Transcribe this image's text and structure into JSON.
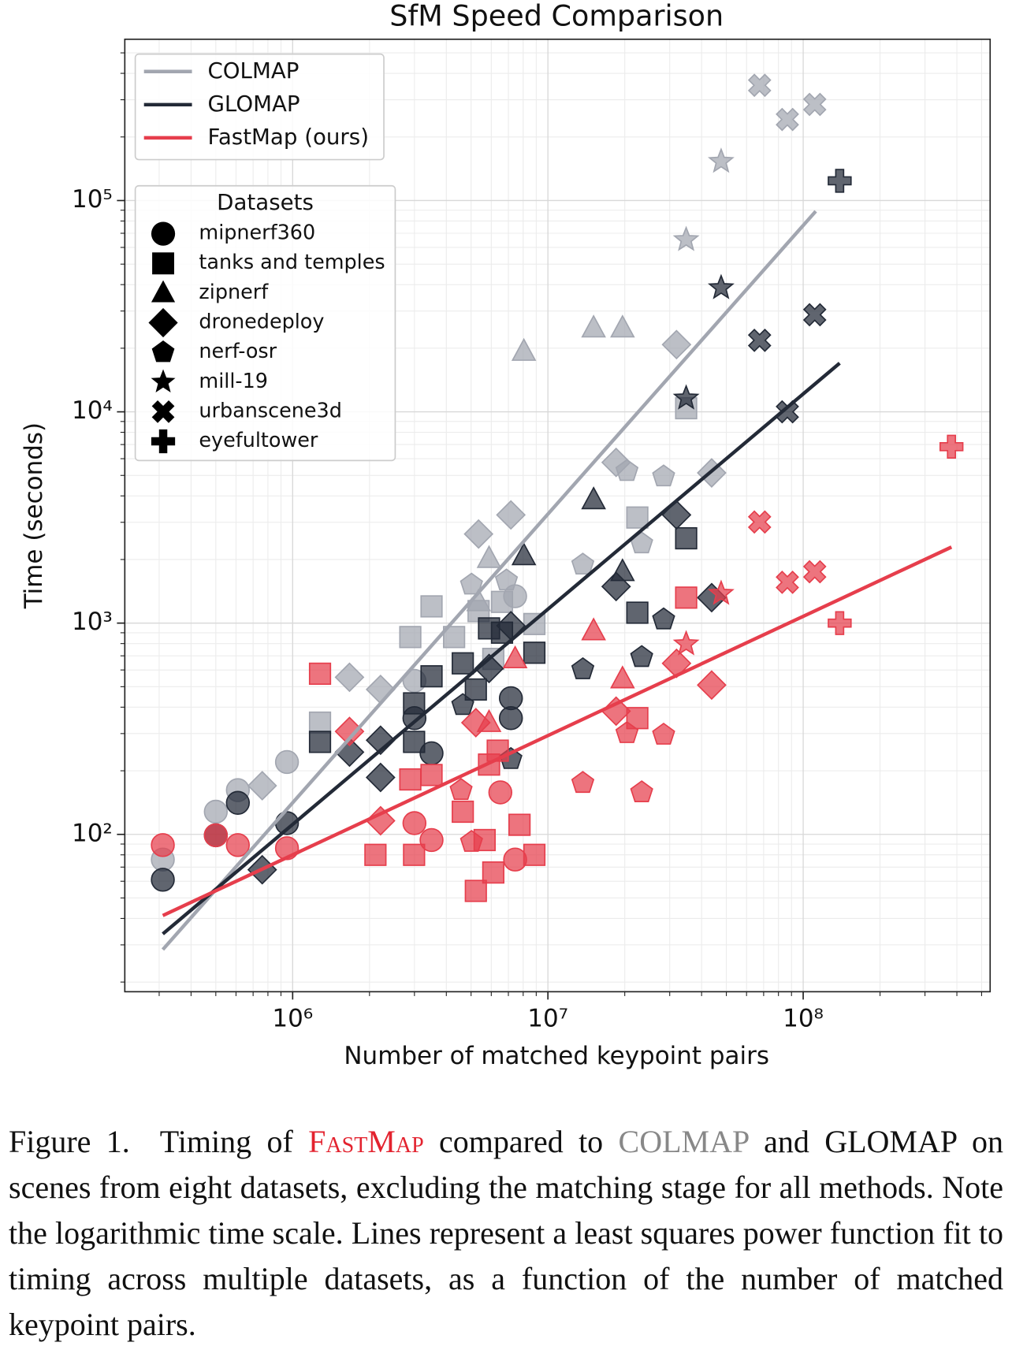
{
  "chart_data": {
    "type": "scatter",
    "title": "SfM Speed Comparison",
    "xlabel": "Number of matched keypoint pairs",
    "ylabel": "Time (seconds)",
    "xscale": "log",
    "yscale": "log",
    "grid": true,
    "legend": "upper left",
    "xlim": [
      220000,
      540000000
    ],
    "ylim": [
      18,
      580000
    ],
    "xticks": [
      {
        "value": 1000000,
        "label": "10⁶"
      },
      {
        "value": 10000000,
        "label": "10⁷"
      },
      {
        "value": 100000000,
        "label": "10⁸"
      }
    ],
    "yticks": [
      {
        "value": 100,
        "label": "10²"
      },
      {
        "value": 1000,
        "label": "10³"
      },
      {
        "value": 10000,
        "label": "10⁴"
      },
      {
        "value": 100000,
        "label": "10⁵"
      }
    ],
    "xminorticks": [
      300000,
      400000,
      500000,
      600000,
      700000,
      800000,
      900000,
      2000000,
      3000000,
      4000000,
      5000000,
      6000000,
      7000000,
      8000000,
      9000000,
      20000000,
      30000000,
      40000000,
      50000000,
      60000000,
      70000000,
      80000000,
      90000000,
      200000000,
      300000000,
      400000000,
      500000000
    ],
    "yminorticks": [
      20,
      30,
      40,
      50,
      60,
      70,
      80,
      90,
      200,
      300,
      400,
      500,
      600,
      700,
      800,
      900,
      2000,
      3000,
      4000,
      5000,
      6000,
      7000,
      8000,
      9000,
      20000,
      30000,
      40000,
      50000,
      60000,
      70000,
      80000,
      90000,
      200000,
      300000,
      400000,
      500000
    ],
    "methods": [
      {
        "name": "COLMAP",
        "color": "#a2a6b0",
        "fit": {
          "x": [
            310000,
            112000000
          ],
          "values": [
            28.5,
            89000
          ]
        }
      },
      {
        "name": "GLOMAP",
        "color": "#232a37",
        "fit": {
          "x": [
            310000,
            139000000
          ],
          "values": [
            33.8,
            17000
          ]
        }
      },
      {
        "name": "FastMap (ours)",
        "color": "#e63e4c",
        "fit": {
          "x": [
            310000,
            381000000
          ],
          "values": [
            41.3,
            2290
          ]
        }
      }
    ],
    "legend_title": "Datasets",
    "datasets": [
      {
        "name": "mipnerf360",
        "marker": "circle"
      },
      {
        "name": "tanks and temples",
        "marker": "square"
      },
      {
        "name": "zipnerf",
        "marker": "triangle"
      },
      {
        "name": "dronedeploy",
        "marker": "diamond"
      },
      {
        "name": "nerf-osr",
        "marker": "pentagon"
      },
      {
        "name": "mill-19",
        "marker": "star"
      },
      {
        "name": "urbanscene3d",
        "marker": "x"
      },
      {
        "name": "eyefultower",
        "marker": "plus"
      }
    ],
    "groups": [
      {
        "method": 0,
        "dataset": 0,
        "x": [
          310000,
          500000,
          610000,
          950000,
          3000000,
          7440000
        ],
        "values": [
          76,
          128,
          162,
          220,
          533,
          1340
        ]
      },
      {
        "method": 0,
        "dataset": 1,
        "x": [
          1280000,
          2890000,
          3500000,
          4290000,
          5350000,
          6610000,
          8850000,
          22400000,
          34800000,
          6110000
        ],
        "values": [
          338,
          859,
          1200,
          859,
          1140,
          1260,
          990,
          3160,
          10400,
          677
        ]
      },
      {
        "method": 0,
        "dataset": 2,
        "x": [
          8050000,
          15100000,
          19600000,
          5880000,
          5350000
        ],
        "values": [
          19300,
          24900,
          24900,
          2020,
          1260
        ]
      },
      {
        "method": 0,
        "dataset": 3,
        "x": [
          1670000,
          760000,
          2210000,
          5350000,
          7160000,
          18500000,
          31900000,
          43800000
        ],
        "values": [
          554,
          170,
          485,
          2640,
          3250,
          5760,
          20800,
          5140
        ]
      },
      {
        "method": 0,
        "dataset": 4,
        "x": [
          5020000,
          6880000,
          13700000,
          20400000,
          28400000,
          23300000
        ],
        "values": [
          1520,
          1590,
          1890,
          5240,
          4940,
          2380
        ]
      },
      {
        "method": 0,
        "dataset": 5,
        "x": [
          34800000,
          47700000
        ],
        "values": [
          65200,
          153000
        ]
      },
      {
        "method": 0,
        "dataset": 6,
        "x": [
          67500000,
          86700000,
          111000000
        ],
        "values": [
          351000,
          242000,
          285000
        ]
      },
      {
        "method": 1,
        "dataset": 0,
        "x": [
          310000,
          500000,
          610000,
          950000,
          3500000,
          3000000,
          7160000,
          7160000
        ],
        "values": [
          61,
          99,
          141,
          113,
          242,
          355,
          441,
          355
        ]
      },
      {
        "method": 1,
        "dataset": 1,
        "x": [
          1280000,
          2990000,
          2990000,
          3500000,
          4640000,
          5220000,
          5880000,
          6610000,
          8850000,
          22400000,
          34800000
        ],
        "values": [
          274,
          417,
          274,
          560,
          645,
          485,
          944,
          901,
          724,
          1120,
          2520
        ]
      },
      {
        "method": 1,
        "dataset": 2,
        "x": [
          15100000,
          8050000,
          19600000
        ],
        "values": [
          3830,
          2080,
          1750
        ]
      },
      {
        "method": 1,
        "dataset": 3,
        "x": [
          1670000,
          2210000,
          760000,
          2210000,
          5880000,
          7160000,
          18500000,
          31900000,
          43800000
        ],
        "values": [
          245,
          279,
          68,
          186,
          610,
          972,
          1490,
          3250,
          1320
        ]
      },
      {
        "method": 1,
        "dataset": 4,
        "x": [
          4640000,
          13700000,
          23300000,
          28400000,
          7160000
        ],
        "values": [
          409,
          604,
          690,
          1040,
          227
        ]
      },
      {
        "method": 1,
        "dataset": 5,
        "x": [
          34800000,
          47700000
        ],
        "values": [
          11600,
          38600
        ]
      },
      {
        "method": 1,
        "dataset": 6,
        "x": [
          67500000,
          86700000,
          111000000
        ],
        "values": [
          21800,
          10000,
          28800
        ]
      },
      {
        "method": 1,
        "dataset": 7,
        "x": [
          139000000
        ],
        "values": [
          124000
        ]
      },
      {
        "method": 2,
        "dataset": 0,
        "x": [
          310000,
          500000,
          610000,
          950000,
          3000000,
          3500000,
          7440000,
          6510000
        ],
        "values": [
          89,
          99,
          89,
          86,
          113,
          94,
          76,
          158
        ]
      },
      {
        "method": 2,
        "dataset": 1,
        "x": [
          1280000,
          2110000,
          2890000,
          2990000,
          3500000,
          4640000,
          5220000,
          5650000,
          6110000,
          6360000,
          7740000,
          8850000,
          22400000,
          34800000,
          5880000
        ],
        "values": [
          576,
          80,
          182,
          80,
          191,
          128,
          54,
          94,
          66,
          249,
          111,
          80,
          355,
          1320,
          214
        ]
      },
      {
        "method": 2,
        "dataset": 2,
        "x": [
          15100000,
          19600000,
          5880000,
          7440000
        ],
        "values": [
          918,
          544,
          338,
          677
        ]
      },
      {
        "method": 2,
        "dataset": 3,
        "x": [
          1670000,
          2210000,
          5220000,
          18500000,
          31900000,
          43800000
        ],
        "values": [
          307,
          116,
          338,
          383,
          645,
          509
        ]
      },
      {
        "method": 2,
        "dataset": 4,
        "x": [
          5020000,
          4570000,
          13700000,
          20400000,
          23300000,
          28400000
        ],
        "values": [
          92,
          162,
          175,
          301,
          158,
          296
        ]
      },
      {
        "method": 2,
        "dataset": 5,
        "x": [
          34800000,
          47700000
        ],
        "values": [
          796,
          1380
        ]
      },
      {
        "method": 2,
        "dataset": 6,
        "x": [
          67500000,
          86700000,
          111000000
        ],
        "values": [
          3010,
          1560,
          1750
        ]
      },
      {
        "method": 2,
        "dataset": 7,
        "x": [
          139000000,
          381000000
        ],
        "values": [
          1000,
          6840
        ]
      }
    ]
  },
  "caption": {
    "parts": [
      "Figure 1.  Timing of ",
      "FastMap",
      " compared to ",
      "COLMAP",
      " and GLOMAP on scenes from eight datasets, excluding the matching stage for all methods. Note the logarithmic time scale. Lines represent a least squares power function fit to timing across multiple datasets, as a function of the number of matched keypoint pairs."
    ]
  }
}
